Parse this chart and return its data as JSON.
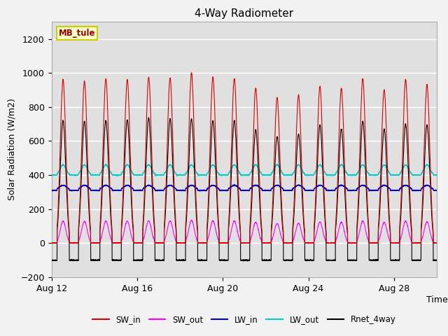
{
  "title": "4-Way Radiometer",
  "xlabel": "Time",
  "ylabel": "Solar Radiation (W/m2)",
  "ylim": [
    -200,
    1300
  ],
  "yticks": [
    -200,
    0,
    200,
    400,
    600,
    800,
    1000,
    1200
  ],
  "fig_bg_color": "#f2f2f2",
  "plot_bg_color": "#e0e0e0",
  "grid_color": "#ffffff",
  "station_label": "MB_tule",
  "station_box_facecolor": "#ffffcc",
  "station_box_edgecolor": "#cccc00",
  "start_day": 12,
  "num_days": 18,
  "colors": {
    "SW_in": "#dd0000",
    "SW_out": "#ff00ff",
    "LW_in": "#0000cc",
    "LW_out": "#00cccc",
    "Rnet_4way": "#000000"
  },
  "xtick_labels": [
    "Aug 12",
    "Aug 16",
    "Aug 20",
    "Aug 24",
    "Aug 28"
  ],
  "xtick_days": [
    12,
    16,
    20,
    24,
    28
  ],
  "day_peaks_SW": [
    960,
    950,
    965,
    960,
    975,
    970,
    1000,
    975,
    965,
    910,
    855,
    870,
    920,
    910,
    965,
    900,
    960,
    930
  ],
  "day_peaks_Rnet": [
    720,
    715,
    720,
    725,
    735,
    730,
    730,
    720,
    720,
    665,
    625,
    640,
    695,
    670,
    715,
    670,
    700,
    695
  ],
  "SW_out_factor": 0.135,
  "LW_in_base": 310,
  "LW_in_daytime_bump": 30,
  "LW_out_base": 375,
  "LW_out_daytime_bump": 60,
  "Rnet_night": -100
}
